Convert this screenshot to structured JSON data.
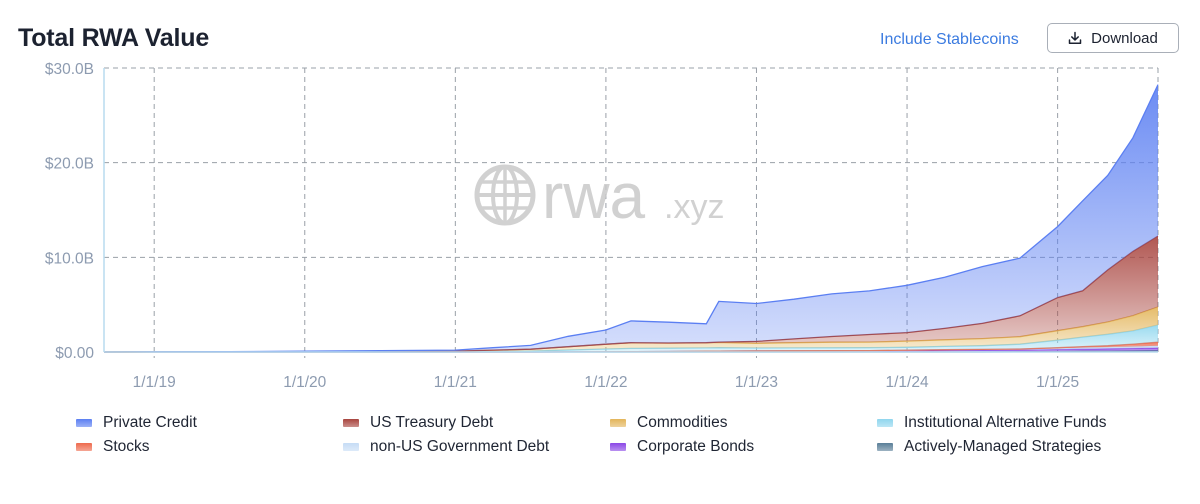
{
  "header": {
    "title": "Total RWA Value",
    "toggle_label": "Include Stablecoins",
    "download_label": "Download"
  },
  "watermark": {
    "brand": "rwa",
    "suffix": ".xyz"
  },
  "colors": {
    "grid": "#9aa0a8",
    "axis_text": "#8d9bb0",
    "axis_line": "#b9dcef"
  },
  "chart_data": {
    "type": "area",
    "stacked": true,
    "grid": true,
    "legend_position": "bottom",
    "ylim": [
      0,
      30
    ],
    "y_ticks": [
      {
        "value": 0,
        "label": "$0.00"
      },
      {
        "value": 10,
        "label": "$10.0B"
      },
      {
        "value": 20,
        "label": "$20.0B"
      },
      {
        "value": 30,
        "label": "$30.0B"
      }
    ],
    "x_range": [
      "2018-09",
      "2025-09"
    ],
    "x_ticks": [
      {
        "value": "2019-01",
        "label": "1/1/19"
      },
      {
        "value": "2020-01",
        "label": "1/1/20"
      },
      {
        "value": "2021-01",
        "label": "1/1/21"
      },
      {
        "value": "2022-01",
        "label": "1/1/22"
      },
      {
        "value": "2023-01",
        "label": "1/1/23"
      },
      {
        "value": "2024-01",
        "label": "1/1/24"
      },
      {
        "value": "2025-01",
        "label": "1/1/25"
      }
    ],
    "x": [
      "2018-09",
      "2019-01",
      "2019-07",
      "2020-01",
      "2020-07",
      "2021-01",
      "2021-04",
      "2021-07",
      "2021-10",
      "2022-01",
      "2022-03",
      "2022-06",
      "2022-09",
      "2022-10",
      "2023-01",
      "2023-04",
      "2023-07",
      "2023-10",
      "2024-01",
      "2024-04",
      "2024-07",
      "2024-10",
      "2025-01",
      "2025-03",
      "2025-05",
      "2025-07",
      "2025-09"
    ],
    "series": [
      {
        "name": "Actively-Managed Strategies",
        "color": "#5a7f98",
        "values": [
          0,
          0,
          0,
          0,
          0,
          0,
          0,
          0,
          0,
          0,
          0,
          0,
          0,
          0,
          0,
          0,
          0,
          0,
          0,
          0,
          0,
          0.02,
          0.05,
          0.08,
          0.1,
          0.12,
          0.15
        ]
      },
      {
        "name": "Corporate Bonds",
        "color": "#8b47e6",
        "values": [
          0,
          0,
          0,
          0,
          0,
          0,
          0,
          0,
          0.01,
          0.02,
          0.03,
          0.05,
          0.08,
          0.1,
          0.12,
          0.13,
          0.14,
          0.15,
          0.15,
          0.16,
          0.17,
          0.18,
          0.2,
          0.22,
          0.24,
          0.26,
          0.28
        ]
      },
      {
        "name": "non-US Government Debt",
        "color": "#c6dcf5",
        "values": [
          0,
          0,
          0,
          0,
          0,
          0,
          0,
          0,
          0,
          0,
          0,
          0,
          0,
          0,
          0,
          0,
          0,
          0,
          0.05,
          0.08,
          0.1,
          0.12,
          0.15,
          0.17,
          0.18,
          0.2,
          0.22
        ]
      },
      {
        "name": "Stocks",
        "color": "#ee6a4d",
        "values": [
          0,
          0,
          0,
          0,
          0,
          0,
          0,
          0,
          0,
          0,
          0,
          0,
          0,
          0,
          0,
          0,
          0,
          0,
          0,
          0,
          0,
          0,
          0.05,
          0.1,
          0.15,
          0.25,
          0.4
        ]
      },
      {
        "name": "Institutional Alternative Funds",
        "color": "#8fd6ee",
        "values": [
          0,
          0,
          0,
          0,
          0,
          0,
          0.05,
          0.1,
          0.2,
          0.3,
          0.35,
          0.35,
          0.35,
          0.35,
          0.3,
          0.3,
          0.3,
          0.3,
          0.3,
          0.35,
          0.4,
          0.5,
          0.8,
          1.0,
          1.2,
          1.4,
          1.8
        ]
      },
      {
        "name": "Commodities",
        "color": "#e3b55a",
        "values": [
          0,
          0.01,
          0.02,
          0.04,
          0.07,
          0.1,
          0.15,
          0.2,
          0.35,
          0.5,
          0.6,
          0.55,
          0.55,
          0.55,
          0.5,
          0.55,
          0.6,
          0.6,
          0.65,
          0.7,
          0.75,
          0.8,
          1.0,
          1.1,
          1.3,
          1.6,
          1.9
        ]
      },
      {
        "name": "US Treasury Debt",
        "color": "#a8443e",
        "values": [
          0,
          0,
          0,
          0,
          0,
          0,
          0,
          0,
          0,
          0,
          0,
          0,
          0,
          0.05,
          0.2,
          0.4,
          0.6,
          0.8,
          0.9,
          1.2,
          1.6,
          2.2,
          3.5,
          3.8,
          5.5,
          6.8,
          7.5
        ]
      },
      {
        "name": "Private Credit",
        "color": "#5b7ff2",
        "values": [
          0,
          0.01,
          0.02,
          0.04,
          0.07,
          0.1,
          0.25,
          0.4,
          1.1,
          1.5,
          2.3,
          2.2,
          2.0,
          4.3,
          4.0,
          4.2,
          4.5,
          4.6,
          5.0,
          5.4,
          6.0,
          6.1,
          7.5,
          9.5,
          10.0,
          12.0,
          16.0
        ]
      }
    ]
  },
  "legend": [
    {
      "label": "Private Credit",
      "color": "#5b7ff2"
    },
    {
      "label": "US Treasury Debt",
      "color": "#a8443e"
    },
    {
      "label": "Commodities",
      "color": "#e3b55a"
    },
    {
      "label": "Institutional Alternative Funds",
      "color": "#8fd6ee"
    },
    {
      "label": "Stocks",
      "color": "#ee6a4d"
    },
    {
      "label": "non-US Government Debt",
      "color": "#c6dcf5"
    },
    {
      "label": "Corporate Bonds",
      "color": "#8b47e6"
    },
    {
      "label": "Actively-Managed Strategies",
      "color": "#5a7f98"
    }
  ]
}
